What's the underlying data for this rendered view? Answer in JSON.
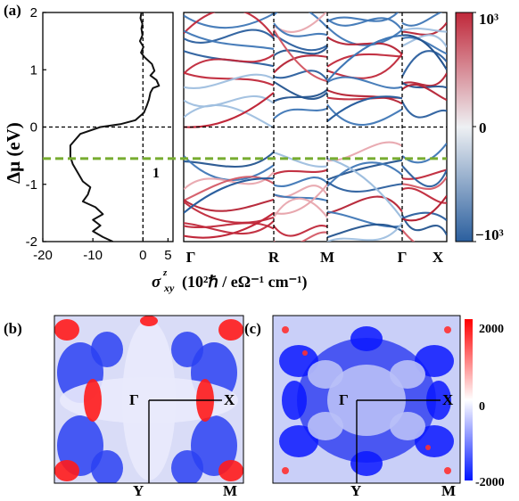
{
  "figure": {
    "panel_a": "(a)",
    "panel_b": "(b)",
    "panel_c": "(c)",
    "y_axis_label": "Δμ (eV)",
    "x_axis_label": "σ",
    "x_axis_sup": "z",
    "x_axis_sub": "xy",
    "x_axis_units": "(10²ℏ / eΩ⁻¹ cm⁻¹)",
    "band_marker": "1"
  },
  "colorbar_a": {
    "top": "10³",
    "mid": "0",
    "bottom": "−10³",
    "colors": [
      "#2b5f9e",
      "#eef0f3",
      "#c0283a"
    ]
  },
  "colorbar_c": {
    "top": "2000",
    "mid": "0",
    "bottom": "-2000",
    "colors": [
      "#0015ff",
      "#ffffff",
      "#ff0000"
    ]
  },
  "kpoints_band": [
    "Γ",
    "R",
    "M",
    "Γ",
    "X"
  ],
  "bz_labels_b": {
    "gamma": "Γ",
    "x": "X",
    "y": "Y",
    "m": "M"
  },
  "bz_labels_c": {
    "gamma": "Γ",
    "x": "X",
    "y": "Y",
    "m": "M"
  },
  "chart_data": [
    {
      "type": "line",
      "name": "ahc-vs-chemical-potential",
      "xlabel": "σ^z_xy (10²ℏ / eΩ⁻¹ cm⁻¹)",
      "ylabel": "Δμ (eV)",
      "xlim": [
        -20,
        6
      ],
      "ylim": [
        -2,
        2
      ],
      "x_ticks": [
        "-20",
        "-10",
        "0",
        "5"
      ],
      "y_ticks": [
        "2",
        "1",
        "0",
        "-1",
        "-2"
      ],
      "points": [
        [
          -0.3,
          2.0
        ],
        [
          -0.5,
          1.9
        ],
        [
          -0.1,
          1.8
        ],
        [
          -0.3,
          1.72
        ],
        [
          -0.1,
          1.6
        ],
        [
          -0.6,
          1.5
        ],
        [
          0.1,
          1.4
        ],
        [
          -0.4,
          1.3
        ],
        [
          0.3,
          1.22
        ],
        [
          1.8,
          1.1
        ],
        [
          2.3,
          0.98
        ],
        [
          1.5,
          0.9
        ],
        [
          2.7,
          0.82
        ],
        [
          3.2,
          0.72
        ],
        [
          2.0,
          0.68
        ],
        [
          1.5,
          0.6
        ],
        [
          1.2,
          0.48
        ],
        [
          0.8,
          0.38
        ],
        [
          0.2,
          0.25
        ],
        [
          -1.5,
          0.12
        ],
        [
          -4.5,
          0.05
        ],
        [
          -8.5,
          0.0
        ],
        [
          -12.5,
          -0.12
        ],
        [
          -14.5,
          -0.32
        ],
        [
          -14.5,
          -0.52
        ],
        [
          -14.0,
          -0.65
        ],
        [
          -13.0,
          -0.8
        ],
        [
          -12.0,
          -0.95
        ],
        [
          -10.5,
          -1.05
        ],
        [
          -11.0,
          -1.18
        ],
        [
          -12.0,
          -1.3
        ],
        [
          -9.5,
          -1.4
        ],
        [
          -8.0,
          -1.52
        ],
        [
          -10.0,
          -1.62
        ],
        [
          -8.5,
          -1.72
        ],
        [
          -10.0,
          -1.82
        ],
        [
          -8.0,
          -1.92
        ],
        [
          -6.0,
          -2.0
        ]
      ],
      "dashed_lines": {
        "x": 0,
        "y": 0,
        "green_y": -0.55
      }
    },
    {
      "type": "line",
      "name": "band-structure",
      "x_ticks": [
        "Γ",
        "R",
        "M",
        "Γ",
        "X"
      ],
      "ylim": [
        -2,
        2
      ],
      "fermi_level": 0,
      "green_level": -0.55,
      "coloring": "band resolved Berry curvature, blue negative, red positive, range −10³ to 10³"
    },
    {
      "type": "heatmap",
      "name": "brillouin-zone-ahc-b",
      "range": [
        -2000,
        2000
      ],
      "corners": [
        "Γ",
        "X",
        "M",
        "Y"
      ]
    },
    {
      "type": "heatmap",
      "name": "brillouin-zone-ahc-c",
      "range": [
        -2000,
        2000
      ],
      "corners": [
        "Γ",
        "X",
        "M",
        "Y"
      ]
    }
  ]
}
